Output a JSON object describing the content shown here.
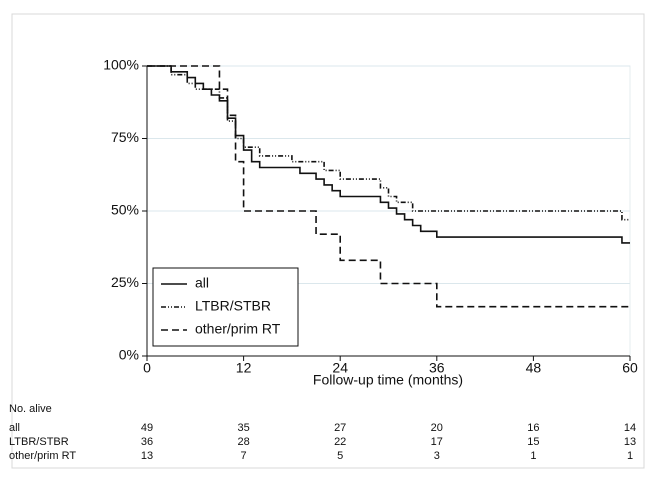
{
  "chart_data": {
    "type": "step",
    "x_label": "Follow-up time (months)",
    "xlim": [
      0,
      60
    ],
    "xticks": [
      0,
      12,
      24,
      36,
      48,
      60
    ],
    "ylim": [
      0,
      100
    ],
    "yticks": [
      {
        "value": 0,
        "label": "0%"
      },
      {
        "value": 25,
        "label": "25%"
      },
      {
        "value": 50,
        "label": "50%"
      },
      {
        "value": 75,
        "label": "75%"
      },
      {
        "value": 100,
        "label": "100%"
      }
    ],
    "grid": true,
    "legend": "lower left",
    "series": [
      {
        "name": "all",
        "color": "#111111",
        "style": "solid",
        "x": [
          0,
          3,
          5,
          6,
          7,
          8,
          9,
          10,
          11,
          12,
          13,
          14,
          19,
          21,
          22,
          23,
          24,
          29,
          30,
          31,
          32,
          33,
          34,
          36,
          59,
          60
        ],
        "values": [
          100,
          98,
          96,
          94,
          92,
          90,
          88,
          82,
          76,
          71,
          67,
          65,
          63,
          61,
          59,
          57,
          55,
          53,
          51,
          49,
          47,
          45,
          43,
          41,
          39,
          39
        ]
      },
      {
        "name": "LTBR/STBR",
        "color": "#111111",
        "style": "dashdot",
        "x": [
          0,
          3,
          5,
          6,
          9,
          10,
          11,
          12,
          14,
          18,
          22,
          24,
          29,
          30,
          31,
          33,
          59,
          60
        ],
        "values": [
          100,
          97,
          94,
          92,
          89,
          81,
          75,
          72,
          69,
          67,
          64,
          61,
          58,
          55,
          53,
          50,
          47,
          47
        ]
      },
      {
        "name": "other/prim RT",
        "color": "#111111",
        "style": "dash",
        "x": [
          0,
          9,
          10,
          11,
          12,
          21,
          24,
          29,
          36,
          60
        ],
        "values": [
          100,
          92,
          83,
          67,
          50,
          42,
          33,
          25,
          17,
          17
        ]
      }
    ],
    "risk_table": {
      "title": "No. alive",
      "rows": [
        {
          "name": "all",
          "values": [
            49,
            35,
            27,
            20,
            16,
            14
          ]
        },
        {
          "name": "LTBR/STBR",
          "values": [
            36,
            28,
            22,
            17,
            15,
            13
          ]
        },
        {
          "name": "other/prim RT",
          "values": [
            13,
            7,
            5,
            3,
            1,
            1
          ]
        }
      ]
    }
  }
}
